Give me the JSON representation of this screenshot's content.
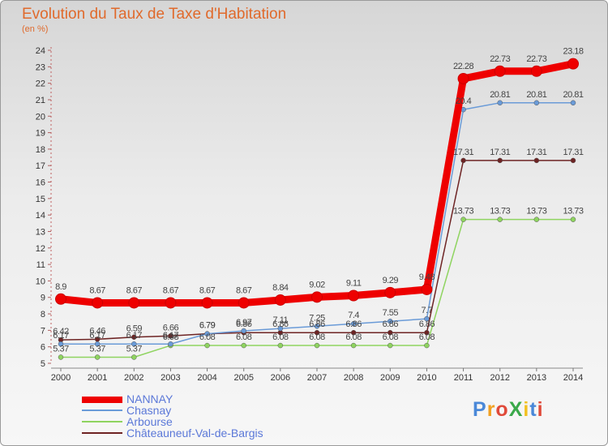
{
  "title": "Evolution du Taux de Taxe d'Habitation",
  "subtitle": "(en %)",
  "logo": {
    "text": "ProXiti",
    "colors": [
      "#4a88d8",
      "#f2a020",
      "#e04a3a",
      "#3aa84a",
      "#f2c020",
      "#4a88d8",
      "#e04a3a"
    ]
  },
  "chart_data": {
    "type": "line",
    "title": "Evolution du Taux de Taxe d'Habitation",
    "ylabel": "(en %)",
    "x": [
      "2000",
      "2001",
      "2002",
      "2003",
      "2004",
      "2005",
      "2006",
      "2007",
      "2008",
      "2009",
      "2010",
      "2011",
      "2012",
      "2013",
      "2014"
    ],
    "yticks": [
      "5",
      "6",
      "7",
      "8",
      "9",
      "10",
      "11",
      "12",
      "13",
      "14",
      "15",
      "16",
      "17",
      "18",
      "19",
      "20",
      "21",
      "22",
      "23",
      "24"
    ],
    "ylim": [
      5,
      24
    ],
    "grid": false,
    "legend": "bottom-left",
    "series": [
      {
        "name": "NANNAY",
        "color": "#ee0000",
        "values": [
          8.9,
          8.67,
          8.67,
          8.67,
          8.67,
          8.67,
          8.84,
          9.02,
          9.11,
          9.29,
          9.48,
          22.28,
          22.73,
          22.73,
          23.18
        ],
        "labels": [
          "8.9",
          "8.67",
          "8.67",
          "8.67",
          "8.67",
          "8.67",
          "8.84",
          "9.02",
          "9.11",
          "9.29",
          "9.48",
          "22.28",
          "22.73",
          "22.73",
          "23.18"
        ]
      },
      {
        "name": "Chasnay",
        "color": "#6a9bd8",
        "values": [
          6.17,
          6.17,
          6.17,
          6.17,
          6.79,
          6.97,
          7.11,
          7.25,
          7.4,
          7.55,
          7.7,
          20.4,
          20.81,
          20.81,
          20.81
        ],
        "labels": [
          "6.17",
          "6.17",
          "6.17",
          "6.17",
          "6.79",
          "6.97",
          "7.11",
          "7.25",
          "7.4",
          "7.55",
          "7.7",
          "20.4",
          "20.81",
          "20.81",
          "20.81"
        ]
      },
      {
        "name": "Arbourse",
        "color": "#8fd460",
        "values": [
          5.37,
          5.37,
          5.37,
          6.08,
          6.08,
          6.08,
          6.08,
          6.08,
          6.08,
          6.08,
          6.08,
          13.73,
          13.73,
          13.73,
          13.73
        ],
        "labels": [
          "5.37",
          "5.37",
          "5.37",
          "6.08",
          "6.08",
          "6.08",
          "6.08",
          "6.08",
          "6.08",
          "6.08",
          "6.08",
          "13.73",
          "13.73",
          "13.73",
          "13.73"
        ]
      },
      {
        "name": "Châteauneuf-Val-de-Bargis",
        "color": "#6e2424",
        "values": [
          6.42,
          6.46,
          6.59,
          6.66,
          6.79,
          6.86,
          6.86,
          6.86,
          6.86,
          6.86,
          6.86,
          17.31,
          17.31,
          17.31,
          17.31
        ],
        "labels": [
          "6.42",
          "6.46",
          "6.59",
          "6.66",
          "6.79",
          "6.86",
          "6.86",
          "6.86",
          "6.86",
          "6.86",
          "6.86",
          "17.31",
          "17.31",
          "17.31",
          "17.31"
        ]
      }
    ]
  }
}
